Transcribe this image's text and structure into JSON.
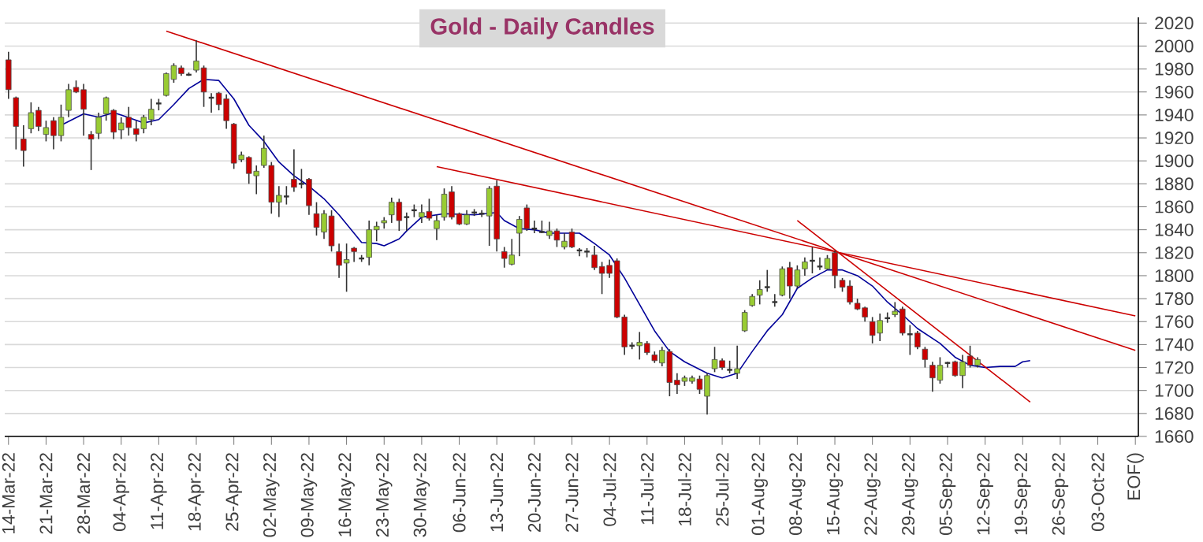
{
  "chart_data": {
    "type": "candlestick",
    "title": "Gold - Daily Candles",
    "categories": [
      "14-Mar-22",
      null,
      null,
      null,
      null,
      "21-Mar-22",
      null,
      null,
      null,
      null,
      "28-Mar-22",
      null,
      null,
      null,
      null,
      "04-Apr-22",
      null,
      null,
      null,
      null,
      "11-Apr-22",
      null,
      null,
      null,
      null,
      "18-Apr-22",
      null,
      null,
      null,
      null,
      "25-Apr-22",
      null,
      null,
      null,
      null,
      "02-May-22",
      null,
      null,
      null,
      null,
      "09-May-22",
      null,
      null,
      null,
      null,
      "16-May-22",
      null,
      null,
      null,
      null,
      "23-May-22",
      null,
      null,
      null,
      null,
      "30-May-22",
      null,
      null,
      null,
      null,
      "06-Jun-22",
      null,
      null,
      null,
      null,
      "13-Jun-22",
      null,
      null,
      null,
      null,
      "20-Jun-22",
      null,
      null,
      null,
      null,
      "27-Jun-22",
      null,
      null,
      null,
      null,
      "04-Jul-22",
      null,
      null,
      null,
      null,
      "11-Jul-22",
      null,
      null,
      null,
      null,
      "18-Jul-22",
      null,
      null,
      null,
      null,
      "25-Jul-22",
      null,
      null,
      null,
      null,
      "01-Aug-22",
      null,
      null,
      null,
      null,
      "08-Aug-22",
      null,
      null,
      null,
      null,
      "15-Aug-22",
      null,
      null,
      null,
      null,
      "22-Aug-22",
      null,
      null,
      null,
      null,
      "29-Aug-22",
      null,
      null,
      null,
      null,
      "05-Sep-22",
      null,
      null,
      null,
      null,
      "12-Sep-22",
      null,
      null,
      null,
      null,
      "19-Sep-22",
      null,
      null,
      null,
      null,
      "26-Sep-22",
      null,
      null,
      null,
      null,
      "03-Oct-22",
      null,
      null,
      null,
      null,
      "EOF()"
    ],
    "ohlc": [
      [
        1988,
        1995,
        1954,
        1962
      ],
      [
        1955,
        1956,
        1910,
        1930
      ],
      [
        1919,
        1931,
        1895,
        1909
      ],
      [
        1928,
        1951,
        1924,
        1942
      ],
      [
        1944,
        1947,
        1926,
        1930
      ],
      [
        1923,
        1935,
        1917,
        1929
      ],
      [
        1935,
        1938,
        1910,
        1922
      ],
      [
        1922,
        1949,
        1917,
        1938
      ],
      [
        1944,
        1967,
        1938,
        1962
      ],
      [
        1964,
        1970,
        1959,
        1960
      ],
      [
        1962,
        1967,
        1922,
        1945
      ],
      [
        1923,
        1926,
        1892,
        1919
      ],
      [
        1924,
        1942,
        1919,
        1938
      ],
      [
        1941,
        1956,
        1935,
        1955
      ],
      [
        1944,
        1945,
        1919,
        1925
      ],
      [
        1927,
        1938,
        1919,
        1933
      ],
      [
        1938,
        1947,
        1922,
        1929
      ],
      [
        1928,
        1935,
        1917,
        1923
      ],
      [
        1928,
        1940,
        1924,
        1938
      ],
      [
        1936,
        1954,
        1931,
        1945
      ],
      [
        1950,
        1954,
        1944,
        1950
      ],
      [
        1957,
        1977,
        1956,
        1976
      ],
      [
        1971,
        1985,
        1968,
        1983
      ],
      [
        1981,
        1983,
        1974,
        1976
      ],
      [
        1975,
        1977,
        1974,
        1975
      ],
      [
        1979,
        2005,
        1977,
        1987
      ],
      [
        1981,
        1983,
        1947,
        1960
      ],
      [
        1955,
        1959,
        1942,
        1955
      ],
      [
        1959,
        1960,
        1944,
        1949
      ],
      [
        1954,
        1958,
        1928,
        1935
      ],
      [
        1932,
        1933,
        1893,
        1898
      ],
      [
        1901,
        1908,
        1899,
        1905
      ],
      [
        1903,
        1904,
        1880,
        1889
      ],
      [
        1887,
        1896,
        1871,
        1891
      ],
      [
        1896,
        1922,
        1894,
        1911
      ],
      [
        1896,
        1899,
        1854,
        1864
      ],
      [
        1864,
        1878,
        1851,
        1870
      ],
      [
        1869,
        1878,
        1862,
        1869
      ],
      [
        1884,
        1910,
        1873,
        1877
      ],
      [
        1880,
        1893,
        1876,
        1880
      ],
      [
        1884,
        1885,
        1853,
        1861
      ],
      [
        1854,
        1864,
        1835,
        1842
      ],
      [
        1838,
        1857,
        1832,
        1854
      ],
      [
        1852,
        1857,
        1821,
        1826
      ],
      [
        1821,
        1828,
        1798,
        1809
      ],
      [
        1811,
        1828,
        1786,
        1814
      ],
      [
        1824,
        1825,
        1812,
        1821
      ],
      [
        1815,
        1818,
        1812,
        1815
      ],
      [
        1816,
        1848,
        1809,
        1840
      ],
      [
        1840,
        1847,
        1830,
        1843
      ],
      [
        1846,
        1851,
        1841,
        1848
      ],
      [
        1853,
        1868,
        1846,
        1864
      ],
      [
        1864,
        1867,
        1839,
        1848
      ],
      [
        1851,
        1855,
        1839,
        1851
      ],
      [
        1857,
        1862,
        1851,
        1857
      ],
      [
        1851,
        1862,
        1846,
        1855
      ],
      [
        1856,
        1867,
        1848,
        1850
      ],
      [
        1841,
        1853,
        1831,
        1848
      ],
      [
        1851,
        1876,
        1848,
        1871
      ],
      [
        1873,
        1878,
        1849,
        1851
      ],
      [
        1854,
        1855,
        1844,
        1845
      ],
      [
        1845,
        1857,
        1844,
        1853
      ],
      [
        1855,
        1858,
        1852,
        1855
      ],
      [
        1854,
        1857,
        1851,
        1854
      ],
      [
        1852,
        1878,
        1826,
        1876
      ],
      [
        1878,
        1883,
        1821,
        1832
      ],
      [
        1821,
        1825,
        1807,
        1815
      ],
      [
        1810,
        1832,
        1809,
        1818
      ],
      [
        1837,
        1852,
        1817,
        1849
      ],
      [
        1859,
        1862,
        1839,
        1841
      ],
      [
        1841,
        1848,
        1837,
        1841
      ],
      [
        1838,
        1848,
        1837,
        1838
      ],
      [
        1835,
        1847,
        1832,
        1839
      ],
      [
        1839,
        1841,
        1825,
        1831
      ],
      [
        1825,
        1837,
        1823,
        1830
      ],
      [
        1838,
        1841,
        1824,
        1825
      ],
      [
        1822,
        1824,
        1817,
        1822
      ],
      [
        1821,
        1824,
        1816,
        1821
      ],
      [
        1818,
        1826,
        1805,
        1807
      ],
      [
        1808,
        1812,
        1784,
        1802
      ],
      [
        1809,
        1814,
        1798,
        1802
      ],
      [
        1813,
        1815,
        1763,
        1764
      ],
      [
        1764,
        1766,
        1731,
        1738
      ],
      [
        1739,
        1742,
        1736,
        1739
      ],
      [
        1739,
        1751,
        1727,
        1742
      ],
      [
        1741,
        1743,
        1731,
        1733
      ],
      [
        1731,
        1734,
        1724,
        1726
      ],
      [
        1724,
        1738,
        1721,
        1735
      ],
      [
        1734,
        1736,
        1695,
        1707
      ],
      [
        1709,
        1715,
        1697,
        1705
      ],
      [
        1708,
        1713,
        1704,
        1711
      ],
      [
        1708,
        1713,
        1706,
        1711
      ],
      [
        1710,
        1713,
        1697,
        1701
      ],
      [
        1695,
        1715,
        1679,
        1713
      ],
      [
        1719,
        1738,
        1716,
        1727
      ],
      [
        1726,
        1728,
        1718,
        1720
      ],
      [
        1718,
        1726,
        1715,
        1718
      ],
      [
        1715,
        1739,
        1710,
        1719
      ],
      [
        1752,
        1770,
        1751,
        1768
      ],
      [
        1774,
        1784,
        1773,
        1782
      ],
      [
        1783,
        1796,
        1775,
        1788
      ],
      [
        1790,
        1805,
        1786,
        1790
      ],
      [
        1777,
        1784,
        1773,
        1777
      ],
      [
        1783,
        1808,
        1782,
        1806
      ],
      [
        1807,
        1812,
        1780,
        1791
      ],
      [
        1791,
        1809,
        1789,
        1805
      ],
      [
        1806,
        1816,
        1800,
        1812
      ],
      [
        1813,
        1825,
        1802,
        1813
      ],
      [
        1808,
        1816,
        1805,
        1808
      ],
      [
        1806,
        1818,
        1805,
        1815
      ],
      [
        1820,
        1822,
        1789,
        1800
      ],
      [
        1796,
        1798,
        1786,
        1790
      ],
      [
        1791,
        1796,
        1775,
        1777
      ],
      [
        1776,
        1780,
        1770,
        1771
      ],
      [
        1772,
        1773,
        1760,
        1764
      ],
      [
        1760,
        1764,
        1741,
        1748
      ],
      [
        1750,
        1767,
        1743,
        1761
      ],
      [
        1763,
        1768,
        1759,
        1763
      ],
      [
        1766,
        1777,
        1764,
        1769
      ],
      [
        1771,
        1773,
        1748,
        1750
      ],
      [
        1749,
        1757,
        1731,
        1749
      ],
      [
        1750,
        1752,
        1736,
        1738
      ],
      [
        1736,
        1738,
        1720,
        1727
      ],
      [
        1722,
        1725,
        1699,
        1711
      ],
      [
        1709,
        1729,
        1706,
        1722
      ],
      [
        1724,
        1725,
        1720,
        1724
      ],
      [
        1725,
        1726,
        1712,
        1713
      ],
      [
        1713,
        1731,
        1702,
        1725
      ],
      [
        1730,
        1739,
        1720,
        1722
      ],
      [
        1722,
        1729,
        1720,
        1727
      ],
      null,
      null,
      null,
      null,
      null,
      null,
      null,
      null,
      null,
      null,
      null,
      null,
      null,
      null,
      null,
      null,
      null,
      null,
      null,
      null,
      null
    ],
    "colors": [
      "#cc0000",
      "#cc0000",
      "#cc0000",
      "#99cc33",
      "#cc0000",
      "#99cc33",
      "#cc0000",
      "#99cc33",
      "#99cc33",
      "#cc0000",
      "#cc0000",
      "#cc0000",
      "#99cc33",
      "#99cc33",
      "#cc0000",
      "#99cc33",
      "#cc0000",
      "#cc0000",
      "#99cc33",
      "#99cc33",
      "#333333",
      "#99cc33",
      "#99cc33",
      "#cc0000",
      "#333333",
      "#99cc33",
      "#cc0000",
      "#333333",
      "#cc0000",
      "#cc0000",
      "#cc0000",
      "#99cc33",
      "#cc0000",
      "#99cc33",
      "#99cc33",
      "#cc0000",
      "#99cc33",
      "#333333",
      "#cc0000",
      "#333333",
      "#cc0000",
      "#cc0000",
      "#99cc33",
      "#cc0000",
      "#cc0000",
      "#99cc33",
      "#cc0000",
      "#333333",
      "#99cc33",
      "#99cc33",
      "#99cc33",
      "#99cc33",
      "#cc0000",
      "#333333",
      "#333333",
      "#99cc33",
      "#cc0000",
      "#99cc33",
      "#99cc33",
      "#cc0000",
      "#cc0000",
      "#99cc33",
      "#333333",
      "#333333",
      "#99cc33",
      "#cc0000",
      "#cc0000",
      "#99cc33",
      "#99cc33",
      "#cc0000",
      "#333333",
      "#333333",
      "#99cc33",
      "#cc0000",
      "#99cc33",
      "#cc0000",
      "#333333",
      "#333333",
      "#cc0000",
      "#cc0000",
      "#cc0000",
      "#cc0000",
      "#cc0000",
      "#333333",
      "#99cc33",
      "#cc0000",
      "#cc0000",
      "#99cc33",
      "#cc0000",
      "#cc0000",
      "#99cc33",
      "#99cc33",
      "#cc0000",
      "#99cc33",
      "#99cc33",
      "#cc0000",
      "#333333",
      "#99cc33",
      "#99cc33",
      "#99cc33",
      "#99cc33",
      "#333333",
      "#333333",
      "#99cc33",
      "#cc0000",
      "#99cc33",
      "#99cc33",
      "#333333",
      "#333333",
      "#99cc33",
      "#cc0000",
      "#cc0000",
      "#cc0000",
      "#cc0000",
      "#cc0000",
      "#cc0000",
      "#99cc33",
      "#333333",
      "#99cc33",
      "#cc0000",
      "#333333",
      "#cc0000",
      "#cc0000",
      "#cc0000",
      "#99cc33",
      "#333333",
      "#cc0000",
      "#99cc33",
      "#cc0000",
      "#99cc33",
      null,
      null,
      null,
      null,
      null,
      null,
      null,
      null,
      null,
      null,
      null,
      null,
      null,
      null,
      null,
      null,
      null,
      null,
      null,
      null,
      null
    ],
    "series": [
      {
        "type": "line",
        "color": "#000099",
        "values": [
          null,
          null,
          null,
          null,
          null,
          null,
          null,
          1931,
          null,
          null,
          1941,
          null,
          1938,
          null,
          1942,
          1940,
          null,
          null,
          1933,
          null,
          1936,
          null,
          1949,
          null,
          1963,
          null,
          1971,
          null,
          1970,
          null,
          1954,
          null,
          1931,
          null,
          1917,
          null,
          1899,
          null,
          1887,
          null,
          1878,
          null,
          1867,
          null,
          1853,
          null,
          1837,
          1829,
          null,
          1828,
          1826,
          null,
          1832,
          1839,
          null,
          1851,
          null,
          null,
          1854,
          null,
          null,
          null,
          1853,
          null,
          null,
          1855,
          1848,
          null,
          1841,
          null,
          1840,
          null,
          1837,
          null,
          1837,
          null,
          1837,
          null,
          1828,
          null,
          1818,
          null,
          1798,
          null,
          1775,
          null,
          1752,
          null,
          1734,
          null,
          1725,
          null,
          null,
          1715,
          null,
          1711,
          null,
          1715,
          null,
          1734,
          null,
          1752,
          null,
          1766,
          null,
          1789,
          null,
          1798,
          null,
          1805,
          null,
          1805,
          null,
          1800,
          null,
          1791,
          null,
          1777,
          null,
          1766,
          null,
          1754,
          null,
          null,
          1741,
          null,
          1729,
          null,
          1722,
          null,
          1720,
          null,
          1721,
          null,
          1721,
          1725,
          1726,
          null,
          null,
          null,
          null,
          null,
          null,
          null,
          null,
          null,
          null,
          null,
          null,
          null,
          null
        ]
      },
      {
        "type": "line",
        "color": "#cc0000",
        "values": [
          null,
          null,
          null,
          null,
          null,
          null,
          null,
          null,
          null,
          null,
          null,
          null,
          null,
          null,
          null,
          null,
          null,
          null,
          null,
          null,
          null,
          2013,
          null,
          null,
          null,
          null,
          null,
          null,
          null,
          null,
          null,
          null,
          null,
          null,
          null,
          null,
          null,
          null,
          null,
          null,
          null,
          null,
          null,
          null,
          null,
          null,
          null,
          null,
          null,
          null,
          null,
          null,
          null,
          null,
          null,
          null,
          null,
          null,
          null,
          null,
          null,
          null,
          null,
          null,
          null,
          null,
          null,
          null,
          null,
          null,
          null,
          null,
          null,
          null,
          null,
          null,
          null,
          null,
          null,
          null,
          null,
          null,
          null,
          null,
          null,
          null,
          null,
          null,
          null,
          null,
          null,
          null,
          null,
          null,
          null,
          null,
          null,
          null,
          null,
          null,
          null,
          null,
          null,
          null,
          null,
          null,
          null,
          null,
          null,
          null,
          null,
          null,
          null,
          null,
          null,
          null,
          null,
          null,
          null,
          null,
          null,
          null,
          null,
          null,
          null,
          null,
          null,
          null,
          null,
          null,
          null,
          null,
          null,
          null,
          null,
          null,
          null,
          null,
          null,
          null,
          null,
          null,
          null,
          null,
          null,
          null,
          null,
          null,
          null,
          null,
          1735
        ]
      },
      {
        "type": "line",
        "color": "#cc0000",
        "values": [
          null,
          null,
          null,
          null,
          null,
          null,
          null,
          null,
          null,
          null,
          null,
          null,
          null,
          null,
          null,
          null,
          null,
          null,
          null,
          null,
          null,
          null,
          null,
          null,
          null,
          null,
          null,
          null,
          null,
          null,
          null,
          null,
          null,
          null,
          null,
          null,
          null,
          null,
          null,
          null,
          null,
          null,
          null,
          null,
          null,
          null,
          null,
          null,
          null,
          null,
          null,
          null,
          null,
          null,
          null,
          null,
          null,
          1895,
          null,
          null,
          null,
          null,
          null,
          null,
          null,
          null,
          null,
          null,
          null,
          null,
          null,
          null,
          null,
          null,
          null,
          null,
          null,
          null,
          null,
          null,
          null,
          null,
          null,
          null,
          null,
          null,
          null,
          null,
          null,
          null,
          null,
          null,
          null,
          null,
          null,
          null,
          null,
          null,
          null,
          null,
          null,
          null,
          null,
          null,
          null,
          null,
          null,
          null,
          null,
          null,
          null,
          null,
          null,
          null,
          null,
          null,
          null,
          null,
          null,
          null,
          null,
          null,
          null,
          null,
          null,
          null,
          null,
          null,
          null,
          null,
          null,
          null,
          null,
          null,
          null,
          null,
          null,
          null,
          null,
          null,
          null,
          null,
          null,
          null,
          null,
          null,
          null,
          null,
          null,
          null,
          1765
        ]
      },
      {
        "type": "line",
        "color": "#cc0000",
        "values": [
          null,
          null,
          null,
          null,
          null,
          null,
          null,
          null,
          null,
          null,
          null,
          null,
          null,
          null,
          null,
          null,
          null,
          null,
          null,
          null,
          null,
          null,
          null,
          null,
          null,
          null,
          null,
          null,
          null,
          null,
          null,
          null,
          null,
          null,
          null,
          null,
          null,
          null,
          null,
          null,
          null,
          null,
          null,
          null,
          null,
          null,
          null,
          null,
          null,
          null,
          null,
          null,
          null,
          null,
          null,
          null,
          null,
          null,
          null,
          null,
          null,
          null,
          null,
          null,
          null,
          null,
          null,
          null,
          null,
          null,
          null,
          null,
          null,
          null,
          null,
          null,
          null,
          null,
          null,
          null,
          null,
          null,
          null,
          null,
          null,
          null,
          null,
          null,
          null,
          null,
          null,
          null,
          null,
          null,
          null,
          null,
          null,
          null,
          null,
          null,
          null,
          null,
          null,
          null,
          null,
          1848,
          null,
          null,
          null,
          null,
          null,
          null,
          null,
          null,
          null,
          null,
          null,
          null,
          null,
          null,
          null,
          null,
          null,
          null,
          null,
          null,
          null,
          null,
          null,
          null,
          null,
          null,
          null,
          null,
          null,
          null,
          1690,
          null,
          null,
          null,
          null,
          null,
          null,
          null,
          null,
          null,
          null,
          null,
          null,
          null,
          null
        ]
      }
    ],
    "ylim": [
      1660,
      2025
    ],
    "yticks": [
      1660,
      1680,
      1700,
      1720,
      1740,
      1760,
      1780,
      1800,
      1820,
      1840,
      1860,
      1880,
      1900,
      1920,
      1940,
      1960,
      1980,
      2000,
      2020
    ],
    "grid": "y"
  }
}
